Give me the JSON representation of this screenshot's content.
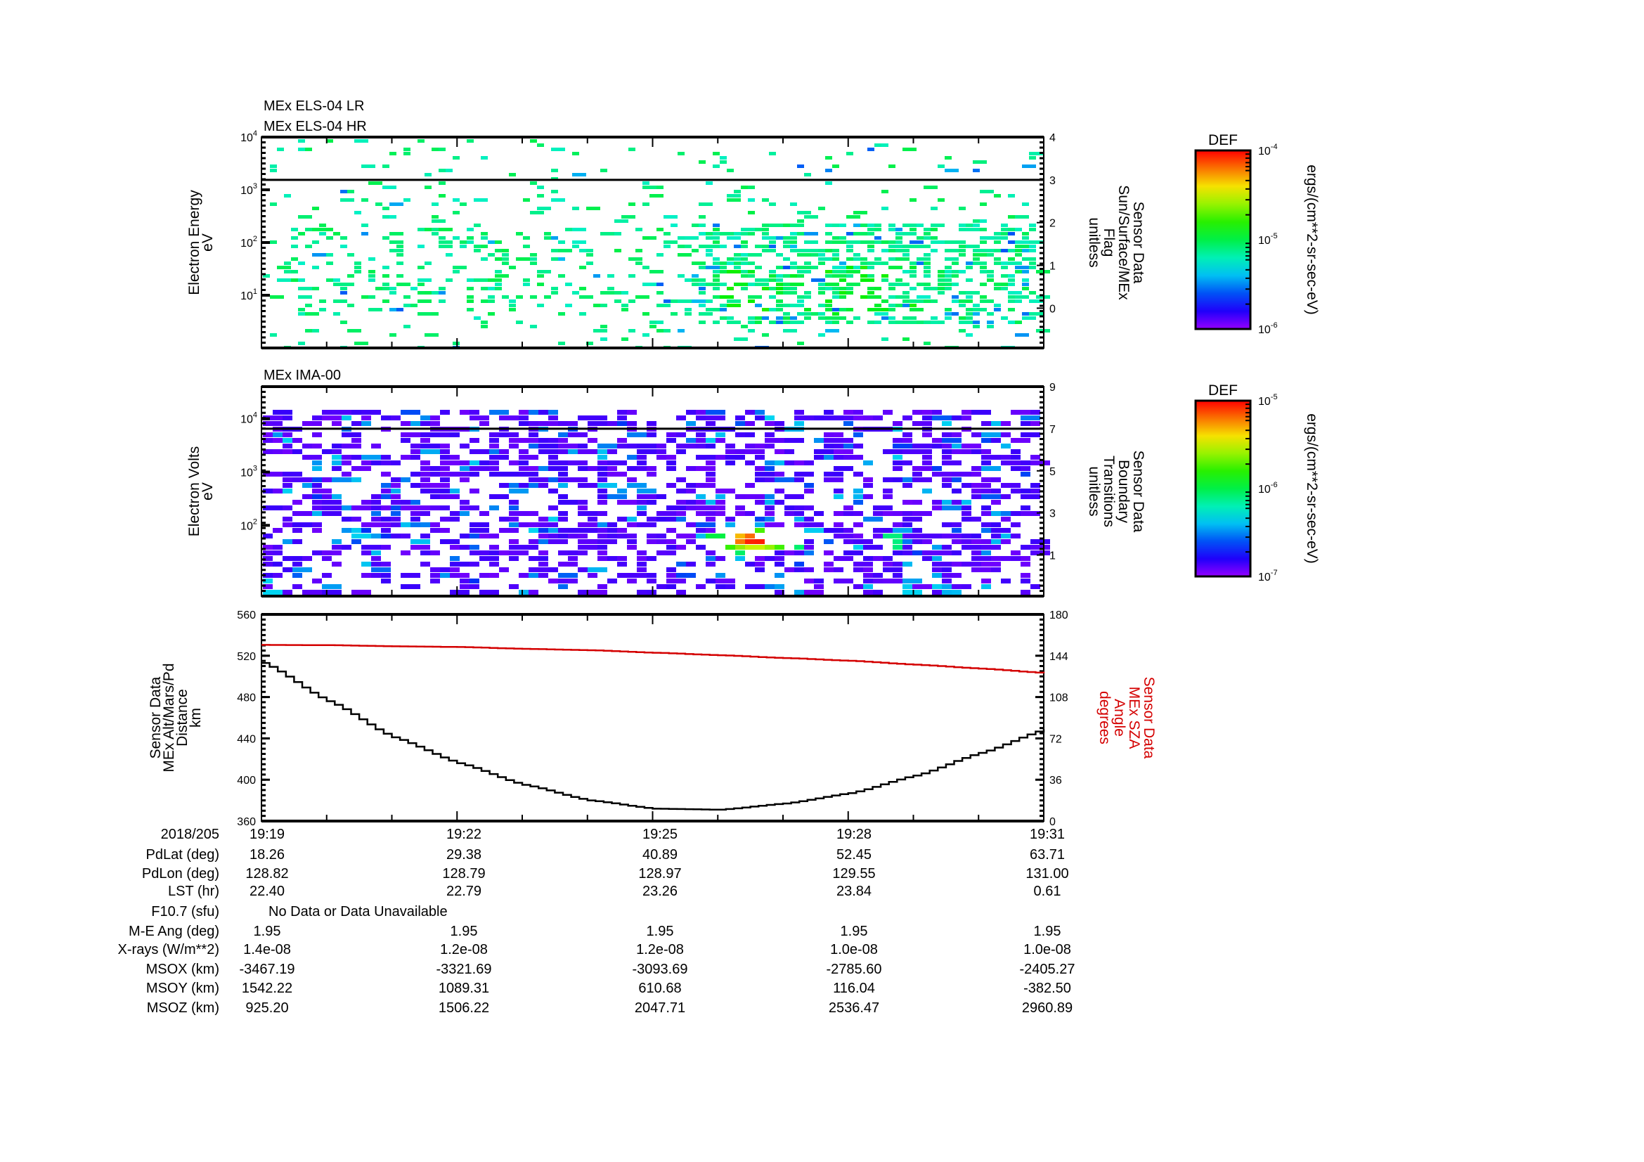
{
  "chart_data": [
    {
      "type": "heatmap",
      "titles": [
        "MEx ELS-04 LR",
        "MEx ELS-04 HR"
      ],
      "ylabel": [
        "Electron Energy",
        "eV"
      ],
      "yscale": "log",
      "ylim": [
        1,
        10000
      ],
      "yticks": [
        {
          "base": "10",
          "exp": "1",
          "value": 10
        },
        {
          "base": "10",
          "exp": "2",
          "value": 100
        },
        {
          "base": "10",
          "exp": "3",
          "value": 1000
        },
        {
          "base": "10",
          "exp": "4",
          "value": 10000
        }
      ],
      "y2label": [
        "Sensor Data",
        "Sun/Surface/MEx",
        "Flag",
        "unitless"
      ],
      "y2lim": [
        -0.93,
        4
      ],
      "y2ticks": [
        "0",
        "1",
        "2",
        "3",
        "4"
      ],
      "flag_value": 3,
      "colorbar": {
        "label": "DEF",
        "units": "ergs/(cm**2-sr-sec-eV)",
        "ticks": [
          {
            "base": "10",
            "exp": "-4"
          },
          {
            "base": "10",
            "exp": "-5"
          },
          {
            "base": "10",
            "exp": "-6"
          }
        ]
      }
    },
    {
      "type": "heatmap",
      "titles": [
        "MEx IMA-00"
      ],
      "ylabel": [
        "Electron Volts",
        "eV"
      ],
      "yscale": "log",
      "ylim": [
        4.7,
        40000
      ],
      "yticks": [
        {
          "base": "10",
          "exp": "2",
          "value": 100
        },
        {
          "base": "10",
          "exp": "3",
          "value": 1000
        },
        {
          "base": "10",
          "exp": "4",
          "value": 10000
        }
      ],
      "y2label": [
        "Sensor Data",
        "Boundary",
        "Transitions",
        "unitless"
      ],
      "y2lim": [
        -0.95,
        9
      ],
      "y2ticks": [
        "1",
        "3",
        "5",
        "7",
        "9"
      ],
      "flag_value": 7,
      "colorbar": {
        "label": "DEF",
        "units": "ergs/(cm**2-sr-sec-eV)",
        "ticks": [
          {
            "base": "10",
            "exp": "-5"
          },
          {
            "base": "10",
            "exp": "-6"
          },
          {
            "base": "10",
            "exp": "-7"
          }
        ]
      }
    },
    {
      "type": "line",
      "ylabel": [
        "Sensor Data",
        "MEx Alt/Mars/Pd",
        "Distance",
        "km"
      ],
      "ylim": [
        360,
        560
      ],
      "yticks": [
        "360",
        "400",
        "440",
        "480",
        "520",
        "560"
      ],
      "y2label": [
        "Sensor Data",
        "MEx SZA",
        "Angle",
        "degrees"
      ],
      "y2lim": [
        0,
        180
      ],
      "y2ticks": [
        "0",
        "36",
        "72",
        "108",
        "144",
        "180"
      ],
      "x_minutes_from_1919": [
        0,
        1,
        2,
        3,
        4,
        5,
        6,
        7,
        8,
        9,
        10,
        11,
        12
      ],
      "series": [
        {
          "name": "MEx Alt/Mars/Pd Distance (km)",
          "axis": "left",
          "color": "#000000",
          "values": [
            513,
            476,
            441,
            416,
            395,
            380,
            372,
            371,
            377,
            387,
            404,
            426,
            449
          ]
        },
        {
          "name": "MEx SZA Angle (degrees)",
          "axis": "right",
          "color": "#d40000",
          "values": [
            153.4,
            153.2,
            152.2,
            151.6,
            150.0,
            148.8,
            146.6,
            144.4,
            142.0,
            139.6,
            136.2,
            132.8,
            128.9
          ]
        }
      ]
    }
  ],
  "ephemeris": {
    "rows": [
      {
        "label": "2018/205",
        "values": [
          "19:19",
          "19:22",
          "19:25",
          "19:28",
          "19:31"
        ]
      },
      {
        "label": "PdLat (deg)",
        "values": [
          "18.26",
          "29.38",
          "40.89",
          "52.45",
          "63.71"
        ]
      },
      {
        "label": "PdLon (deg)",
        "values": [
          "128.82",
          "128.79",
          "128.97",
          "129.55",
          "131.00"
        ]
      },
      {
        "label": "LST (hr)",
        "values": [
          "22.40",
          "22.79",
          "23.26",
          "23.84",
          "0.61"
        ]
      },
      {
        "label": "F10.7 (sfu)",
        "note": "No Data or Data Unavailable",
        "values": []
      },
      {
        "label": "M-E Ang (deg)",
        "values": [
          "1.95",
          "1.95",
          "1.95",
          "1.95",
          "1.95"
        ]
      },
      {
        "label": "X-rays (W/m**2)",
        "values": [
          "1.4e-08",
          "1.2e-08",
          "1.2e-08",
          "1.0e-08",
          "1.0e-08"
        ]
      },
      {
        "label": "MSOX (km)",
        "values": [
          "-3467.19",
          "-3321.69",
          "-3093.69",
          "-2785.60",
          "-2405.27"
        ]
      },
      {
        "label": "MSOY (km)",
        "values": [
          "1542.22",
          "1089.31",
          "610.68",
          "116.04",
          "-382.50"
        ]
      },
      {
        "label": "MSOZ (km)",
        "values": [
          "925.20",
          "1506.22",
          "2047.71",
          "2536.47",
          "2960.89"
        ]
      }
    ]
  },
  "colors": {
    "sza": "#d40000",
    "alt": "#000000"
  }
}
